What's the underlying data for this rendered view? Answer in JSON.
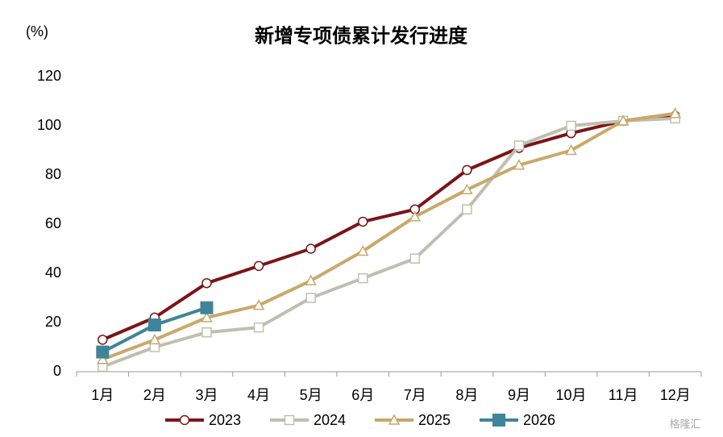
{
  "chart_data": {
    "type": "line",
    "title": "新增专项债累计发行进度",
    "y_unit_label": "(%)",
    "categories": [
      "1月",
      "2月",
      "3月",
      "4月",
      "5月",
      "6月",
      "7月",
      "8月",
      "9月",
      "10月",
      "11月",
      "12月"
    ],
    "series": [
      {
        "name": "2023",
        "color": "#7b1417",
        "marker": "circle",
        "values": [
          13,
          22,
          36,
          43,
          50,
          61,
          66,
          82,
          91,
          97,
          102,
          104
        ]
      },
      {
        "name": "2024",
        "color": "#bfbfb0",
        "marker": "square",
        "values": [
          2,
          10,
          16,
          18,
          30,
          38,
          46,
          66,
          92,
          100,
          102,
          103
        ]
      },
      {
        "name": "2025",
        "color": "#c9a86a",
        "marker": "triangle",
        "values": [
          5,
          13,
          22,
          27,
          37,
          49,
          63,
          74,
          84,
          90,
          102,
          105
        ]
      },
      {
        "name": "2026",
        "color": "#3f8599",
        "marker": "filled-square",
        "values": [
          8,
          19,
          26,
          null,
          null,
          null,
          null,
          null,
          null,
          null,
          null,
          null
        ]
      }
    ],
    "ylim": [
      0,
      120
    ],
    "yticks": [
      0,
      20,
      40,
      60,
      80,
      100,
      120
    ],
    "grid": false,
    "legend": "bottom",
    "watermark": "格隆汇"
  }
}
